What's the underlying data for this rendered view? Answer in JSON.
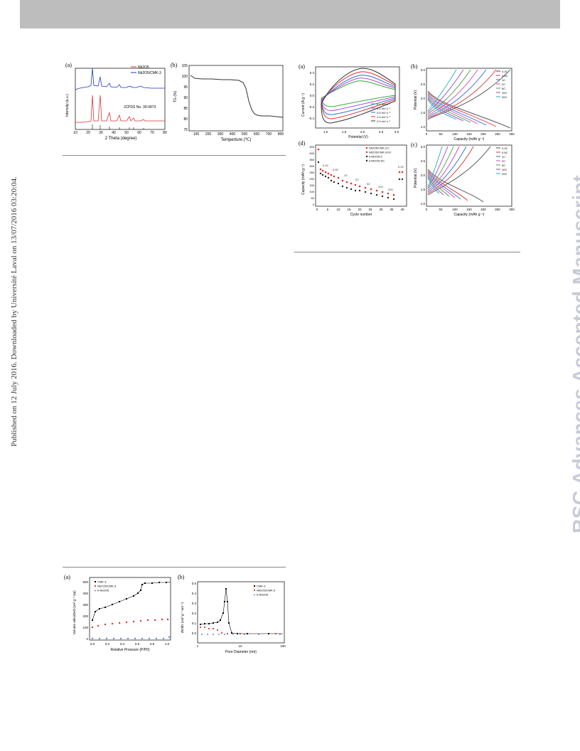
{
  "side_note": "Published on 12 July 2016. Downloaded by Université Laval on 13/07/2016 03:20:04.",
  "watermark": "RSC Advances Accepted Manuscript",
  "figures": {
    "fig1": {
      "panel_a": {
        "label": "(a)",
        "xlabel": "2 Theta (degree)",
        "ylabel": "Intensity (a.u.)",
        "xticks": [
          "10",
          "20",
          "30",
          "40",
          "50",
          "60",
          "70",
          "80"
        ],
        "legend": [
          "Nb2O5",
          "Nb2O5/CMK-3"
        ],
        "annotation": "JCPDS No. 30-0873",
        "colors": {
          "nb2o5": "#e03030",
          "composite": "#2233cc"
        }
      },
      "panel_b": {
        "label": "(b)",
        "xlabel": "Temperture (℃)",
        "ylabel": "TG (%)",
        "xticks": [
          "100",
          "200",
          "300",
          "400",
          "500",
          "600",
          "700",
          "800"
        ],
        "yticks": [
          "105",
          "100",
          "95",
          "90",
          "85",
          "80",
          "75"
        ]
      }
    },
    "fig2": {
      "panel_a": {
        "label": "(a)",
        "xlabel": "Potential (V)",
        "ylabel": "Current (A g⁻¹)",
        "xticks": [
          "1.0",
          "1.5",
          "2.0",
          "2.5",
          "3.0"
        ],
        "yticks": [
          "0.4",
          "0.2",
          "0.0",
          "-0.2",
          "-0.4"
        ],
        "legend": [
          "0.1 mV s⁻¹",
          "0.2 mV s⁻¹",
          "0.5 mV s⁻¹",
          "1.0 mV s⁻¹",
          "2.0 mV s⁻¹"
        ],
        "legend_colors": [
          "#3aa83a",
          "#b04ad0",
          "#2a6ad8",
          "#e03030",
          "#333333"
        ]
      },
      "panel_b": {
        "label": "(b)",
        "xlabel": "Capacity (mAh g⁻¹)",
        "ylabel": "Potential (V)",
        "xticks": [
          "0",
          "50",
          "100",
          "150",
          "200",
          "250",
          "300"
        ],
        "yticks": [
          "3.0",
          "2.5",
          "2.0",
          "1.5",
          "1.0"
        ],
        "legend": [
          "0.2C",
          "0.5C",
          "1C",
          "2C",
          "5C",
          "10C",
          "20C"
        ],
        "legend_colors": [
          "#444444",
          "#e03030",
          "#2a6ad8",
          "#e040c0",
          "#40a040",
          "#a040d0",
          "#20b0b0"
        ]
      },
      "panel_c": {
        "label": "(c)",
        "xlabel": "Capacity (mAh g⁻¹)",
        "ylabel": "Potential (V)",
        "xticks": [
          "0",
          "50",
          "100",
          "150",
          "200",
          "250",
          "300"
        ],
        "yticks": [
          "3.0",
          "2.5",
          "2.0",
          "1.5",
          "1.0"
        ],
        "legend": [
          "0.2C",
          "0.5C",
          "1C",
          "2C",
          "5C",
          "10C",
          "20C"
        ],
        "legend_colors": [
          "#444444",
          "#e03030",
          "#2a6ad8",
          "#e040c0",
          "#40a040",
          "#a040d0",
          "#20b0b0"
        ]
      },
      "panel_d": {
        "label": "(d)",
        "xlabel": "Cycle number",
        "ylabel": "Capacity (mAh g⁻¹)",
        "xticks": [
          "0",
          "5",
          "10",
          "15",
          "20",
          "25",
          "30",
          "35",
          "40"
        ],
        "yticks": [
          "450",
          "400",
          "350",
          "300",
          "250",
          "200",
          "150",
          "100",
          "50",
          "0"
        ],
        "legend": [
          "Nb2O5/CMK-3-C",
          "Nb2O5/CMK-3-DC",
          "b-Nb2O5-C",
          "b-Nb2O5-DC"
        ],
        "rate_labels": [
          "0.2C",
          "0.5C",
          "1C",
          "2C",
          "5C",
          "10C",
          "20C",
          "0.2C"
        ]
      }
    },
    "fig3": {
      "panel_a": {
        "label": "(a)",
        "xlabel": "Relative Pressure (P/P0)",
        "ylabel": "Volume adsorbed (cm³ g⁻¹ stp)",
        "xticks": [
          "0.0",
          "0.2",
          "0.4",
          "0.6",
          "0.8",
          "1.0"
        ],
        "yticks": [
          "500",
          "400",
          "300",
          "200",
          "100",
          "0"
        ],
        "legend": [
          "CMK-3",
          "Nb2O5/CMK-3",
          "b-Nb2O5"
        ]
      },
      "panel_b": {
        "label": "(b)",
        "xlabel": "Pore Diameter (nm)",
        "ylabel": "dV/dD (cm³ g⁻¹ nm⁻¹)",
        "xticks": [
          "1",
          "10",
          "100"
        ],
        "yticks": [
          "0.5",
          "0.4",
          "0.3",
          "0.2",
          "0.1",
          "0.0"
        ],
        "legend": [
          "CMK-3",
          "Nb2O5/CMK-3",
          "b-Nb2O5"
        ]
      }
    }
  }
}
